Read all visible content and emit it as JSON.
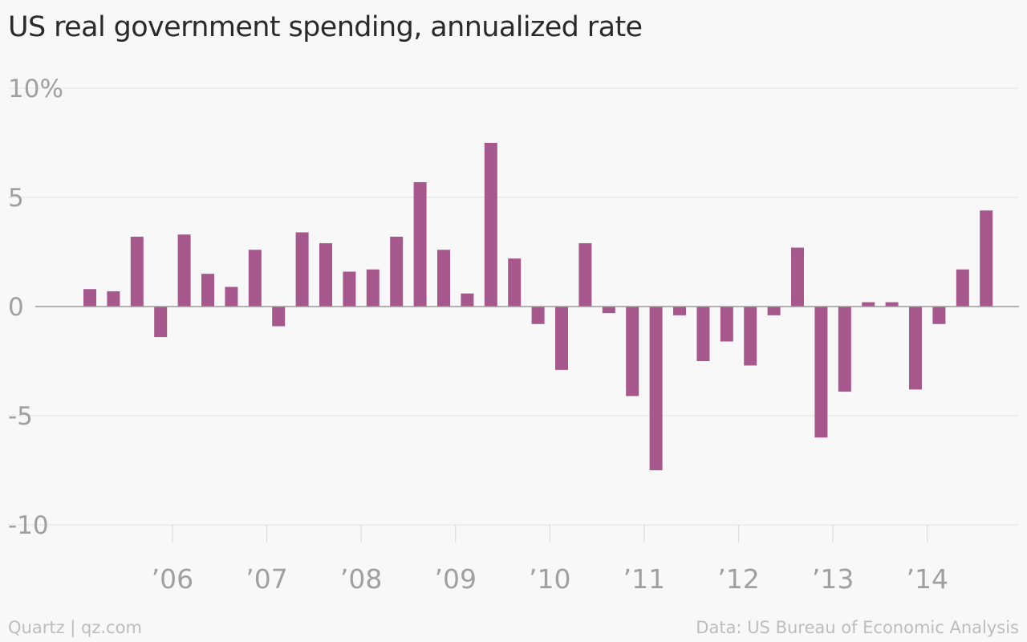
{
  "chart_data": {
    "type": "bar",
    "title": "US real government spending, annualized rate",
    "xlabel": "",
    "ylabel": "",
    "ylim": [
      -10,
      10
    ],
    "y_ticks": [
      {
        "value": 10,
        "label": "10%"
      },
      {
        "value": 5,
        "label": "5"
      },
      {
        "value": 0,
        "label": "0"
      },
      {
        "value": -5,
        "label": "-5"
      },
      {
        "value": -10,
        "label": "-10"
      }
    ],
    "x_ticks": [
      {
        "year": 2006,
        "label": "’06"
      },
      {
        "year": 2007,
        "label": "’07"
      },
      {
        "year": 2008,
        "label": "’08"
      },
      {
        "year": 2009,
        "label": "’09"
      },
      {
        "year": 2010,
        "label": "’10"
      },
      {
        "year": 2011,
        "label": "’11"
      },
      {
        "year": 2012,
        "label": "’12"
      },
      {
        "year": 2013,
        "label": "’13"
      },
      {
        "year": 2014,
        "label": "’14"
      }
    ],
    "categories": [
      "2005 Q1",
      "2005 Q2",
      "2005 Q3",
      "2005 Q4",
      "2006 Q1",
      "2006 Q2",
      "2006 Q3",
      "2006 Q4",
      "2007 Q1",
      "2007 Q2",
      "2007 Q3",
      "2007 Q4",
      "2008 Q1",
      "2008 Q2",
      "2008 Q3",
      "2008 Q4",
      "2009 Q1",
      "2009 Q2",
      "2009 Q3",
      "2009 Q4",
      "2010 Q1",
      "2010 Q2",
      "2010 Q3",
      "2010 Q4",
      "2011 Q1",
      "2011 Q2",
      "2011 Q3",
      "2011 Q4",
      "2012 Q1",
      "2012 Q2",
      "2012 Q3",
      "2012 Q4",
      "2013 Q1",
      "2013 Q2",
      "2013 Q3",
      "2013 Q4",
      "2014 Q1",
      "2014 Q2",
      "2014 Q3"
    ],
    "values": [
      0.8,
      0.7,
      3.2,
      -1.4,
      3.3,
      1.5,
      0.9,
      2.6,
      -0.9,
      3.4,
      2.9,
      1.6,
      1.7,
      3.2,
      5.7,
      2.6,
      0.6,
      7.5,
      2.2,
      -0.8,
      -2.9,
      2.9,
      -0.3,
      -4.1,
      -7.5,
      -0.4,
      -2.5,
      -1.6,
      -2.7,
      -0.4,
      2.7,
      -6.0,
      -3.9,
      0.2,
      0.2,
      -3.8,
      -0.8,
      1.7,
      4.4
    ],
    "bar_color": "#a6578b",
    "grid": true
  },
  "footer": {
    "source_left": "Quartz | qz.com",
    "source_right": "Data: US Bureau of Economic Analysis"
  }
}
